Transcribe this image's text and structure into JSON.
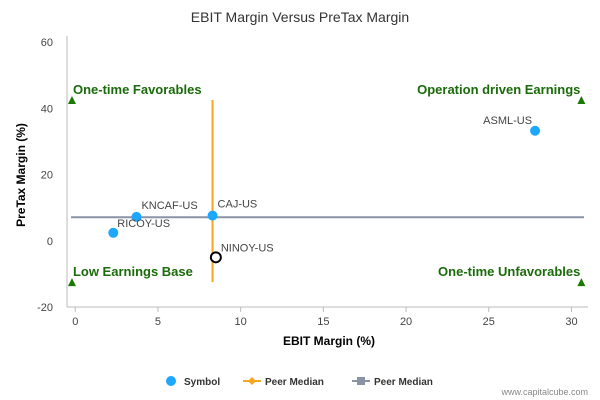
{
  "chart_data": {
    "type": "scatter",
    "title": "EBIT Margin Versus PreTax Margin",
    "xlabel": "EBIT Margin (%)",
    "ylabel": "PreTax Margin (%)",
    "xlim": [
      -0.5,
      31
    ],
    "ylim": [
      -20,
      60
    ],
    "x_ticks": [
      "0",
      "5",
      "10",
      "15",
      "20",
      "25",
      "30"
    ],
    "y_ticks": [
      "-20",
      "0",
      "20",
      "40",
      "60"
    ],
    "points": [
      {
        "label": "ASML-US",
        "x": 27.8,
        "y": 33.2,
        "highlight": false
      },
      {
        "label": "KNCAF-US",
        "x": 3.7,
        "y": 7.2,
        "highlight": false
      },
      {
        "label": "RICOY-US",
        "x": 2.3,
        "y": 2.4,
        "highlight": false
      },
      {
        "label": "CAJ-US",
        "x": 8.3,
        "y": 7.6,
        "highlight": false
      },
      {
        "label": "NINOY-US",
        "x": 8.5,
        "y": -5.0,
        "highlight": true
      }
    ],
    "peer_median_x": {
      "value": 8.3,
      "y_from": -12.5,
      "y_to": 42.5
    },
    "peer_median_y": {
      "value": 7.1,
      "x_from": -0.5,
      "x_to": 31
    },
    "quadrants": [
      {
        "label": "One-time Favorables",
        "position": "top-left",
        "x": -0.2,
        "y": 42.5
      },
      {
        "label": "Operation driven Earnings",
        "position": "top-right",
        "x": 30.6,
        "y": 42.5
      },
      {
        "label": "Low Earnings Base",
        "position": "bottom-left",
        "x": -0.2,
        "y": -12.5
      },
      {
        "label": "One-time Unfavorables",
        "position": "bottom-right",
        "x": 30.6,
        "y": -12.5
      }
    ],
    "legend": {
      "placement": "bottom",
      "items": [
        {
          "name": "Symbol",
          "marker": "circle",
          "color": "#1ea7ff"
        },
        {
          "name": "Peer Median",
          "marker": "diamond-line",
          "color": "#f5a623"
        },
        {
          "name": "Peer Median",
          "marker": "square-line",
          "color": "#8a93a6"
        }
      ]
    },
    "colors": {
      "point": "#1ea7ff",
      "highlight_outline": "#000000",
      "median_x_line": "#f5a623",
      "median_y_line": "#8a93a6",
      "quadrant_text": "#1a6b0a",
      "quadrant_marker": "#1a7a00",
      "axis": "#bbbbbb"
    }
  },
  "credit": "www.capitalcube.com"
}
